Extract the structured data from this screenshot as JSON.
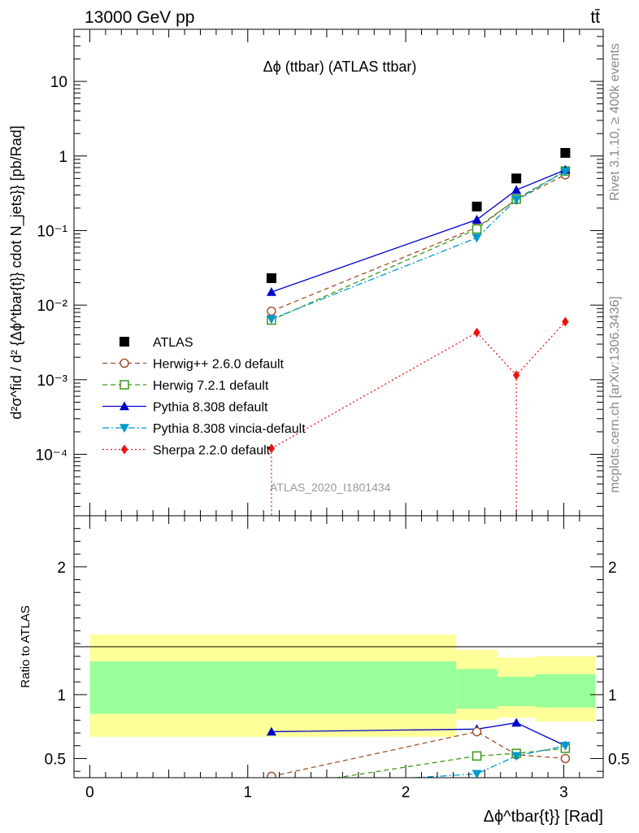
{
  "header": {
    "energy_label": "13000 GeV pp",
    "process_label": "tt̄",
    "plot_title": "Δϕ (ttbar) (ATLAS ttbar)",
    "side_rivet": "Rivet 3.1.10, ≥ 400k events",
    "side_mcplots": "mcplots.cern.ch [arXiv:1306.3436]",
    "watermark": "ATLAS_2020_I1801434"
  },
  "axes": {
    "ylabel_main": "d²σ^fid / d² {Δϕ^tbar{t}} cdot N_jets}} [pb/Rad]",
    "ylabel_ratio": "Ratio to ATLAS",
    "xlabel": "Δϕ^tbar{t}} [Rad]",
    "main_ticks": [
      "10⁻⁴",
      "10⁻³",
      "10⁻²",
      "10⁻¹",
      "1",
      "10"
    ],
    "ratio_ticks": [
      "0.5",
      "1",
      "2"
    ],
    "x_ticks": [
      "0",
      "1",
      "2",
      "3"
    ]
  },
  "chart_data": [
    {
      "type": "scatter",
      "panel": "main",
      "yscale": "log",
      "xlim": [
        -0.1,
        3.25
      ],
      "ylim": [
        1.5e-05,
        50
      ],
      "x": [
        1.15,
        2.45,
        2.7,
        3.01
      ],
      "series": [
        {
          "name": "ATLAS",
          "values": [
            0.023,
            0.21,
            0.5,
            1.1
          ],
          "color": "#000000",
          "marker": "square",
          "line": "none"
        },
        {
          "name": "Herwig++ 2.6.0 default",
          "values": [
            0.0083,
            0.11,
            0.26,
            0.56
          ],
          "color": "#a0522d",
          "marker": "circle-open",
          "line": "dashed"
        },
        {
          "name": "Herwig 7.2.1 default",
          "values": [
            0.0063,
            0.105,
            0.265,
            0.63
          ],
          "color": "#3a9a1a",
          "marker": "square-open",
          "line": "dashed"
        },
        {
          "name": "Pythia 8.308 default",
          "values": [
            0.015,
            0.14,
            0.35,
            0.65
          ],
          "color": "#0000cc",
          "marker": "triangle-up",
          "line": "solid"
        },
        {
          "name": "Pythia 8.308 vincia-default",
          "values": [
            0.0065,
            0.08,
            0.26,
            0.62
          ],
          "color": "#0099cc",
          "marker": "triangle-down",
          "line": "dashdot"
        },
        {
          "name": "Sherpa 2.2.0 default",
          "values": [
            0.00012,
            0.0043,
            0.00115,
            0.006
          ],
          "color": "#ee1111",
          "marker": "diamond",
          "line": "dotted"
        }
      ],
      "legend_position": "lower-left"
    },
    {
      "type": "line",
      "panel": "ratio",
      "ylim": [
        0.35,
        2.4
      ],
      "reference": 1,
      "bands": {
        "x_edges": [
          0,
          2.32,
          2.58,
          2.82,
          3.2
        ],
        "yellow": [
          [
            0.67,
            1.47
          ],
          [
            0.8,
            1.35
          ],
          [
            0.82,
            1.29
          ],
          [
            0.79,
            1.3
          ]
        ],
        "green": [
          [
            0.85,
            1.26
          ],
          [
            0.89,
            1.2
          ],
          [
            0.91,
            1.14
          ],
          [
            0.9,
            1.16
          ]
        ]
      },
      "series": [
        {
          "name": "Pythia 8.308 default",
          "x": [
            1.15,
            2.45,
            2.7,
            3.01
          ],
          "values": [
            0.71,
            0.73,
            0.78,
            0.6
          ],
          "color": "#0000cc"
        },
        {
          "name": "Herwig++ 2.6.0 default",
          "x": [
            1.15,
            2.45,
            2.7,
            3.01
          ],
          "values": [
            0.36,
            0.71,
            0.53,
            0.5
          ],
          "color": "#a0522d"
        },
        {
          "name": "Herwig 7.2.1 default",
          "x": [
            1.15,
            2.45,
            2.7,
            3.01
          ],
          "values": [
            0.27,
            0.52,
            0.54,
            0.58
          ],
          "color": "#3a9a1a"
        },
        {
          "name": "Pythia 8.308 vincia-default",
          "x": [
            1.15,
            2.45,
            2.7,
            3.01
          ],
          "values": [
            0.28,
            0.38,
            0.52,
            0.6
          ],
          "color": "#0099cc"
        }
      ]
    }
  ]
}
